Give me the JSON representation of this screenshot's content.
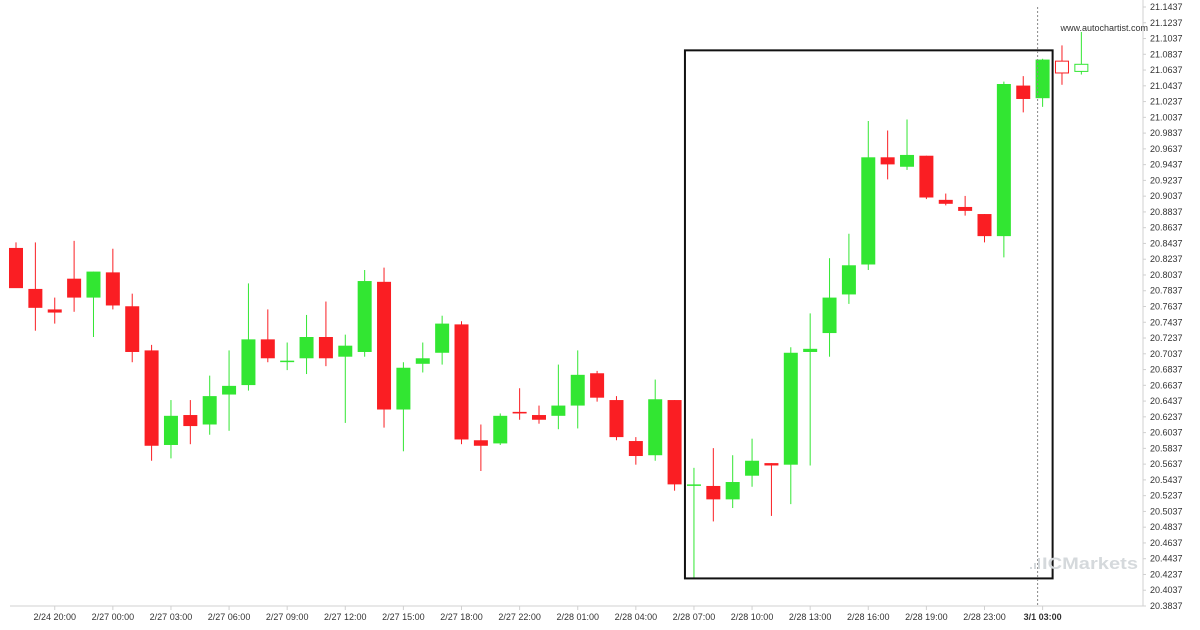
{
  "chart_data": {
    "type": "candlestick",
    "website": "www.autochartist.com",
    "watermark": "ICMarkets",
    "colors": {
      "up": "#32e632",
      "down": "#fa1e23",
      "box": "#111111",
      "axis": "#d0d0d0",
      "cursor": "#888888"
    },
    "ylim": [
      20.3837,
      21.1437
    ],
    "y_ticks": [
      "21.1437",
      "21.1237",
      "21.1037",
      "21.0837",
      "21.0637",
      "21.0437",
      "21.0237",
      "21.0037",
      "20.9837",
      "20.9637",
      "20.9437",
      "20.9237",
      "20.9037",
      "20.8837",
      "20.8637",
      "20.8437",
      "20.8237",
      "20.8037",
      "20.7837",
      "20.7637",
      "20.7437",
      "20.7237",
      "20.7037",
      "20.6837",
      "20.6637",
      "20.6437",
      "20.6237",
      "20.6037",
      "20.5837",
      "20.5637",
      "20.5437",
      "20.5237",
      "20.5037",
      "20.4837",
      "20.4637",
      "20.4437",
      "20.4237",
      "20.4037",
      "20.3837"
    ],
    "x_ticks": [
      {
        "label": "2/24 20:00",
        "index": 2
      },
      {
        "label": "2/27 00:00",
        "index": 5
      },
      {
        "label": "2/27 03:00",
        "index": 8
      },
      {
        "label": "2/27 06:00",
        "index": 11
      },
      {
        "label": "2/27 09:00",
        "index": 14
      },
      {
        "label": "2/27 12:00",
        "index": 17
      },
      {
        "label": "2/27 15:00",
        "index": 20
      },
      {
        "label": "2/27 18:00",
        "index": 23
      },
      {
        "label": "2/27 22:00",
        "index": 26
      },
      {
        "label": "2/28 01:00",
        "index": 29
      },
      {
        "label": "2/28 04:00",
        "index": 32
      },
      {
        "label": "2/28 07:00",
        "index": 35
      },
      {
        "label": "2/28 10:00",
        "index": 38
      },
      {
        "label": "2/28 13:00",
        "index": 41
      },
      {
        "label": "2/28 16:00",
        "index": 44
      },
      {
        "label": "2/28 19:00",
        "index": 47
      },
      {
        "label": "2/28 23:00",
        "index": 50
      },
      {
        "label": "3/1 03:00",
        "index": 53,
        "bold": true
      }
    ],
    "candles": [
      {
        "o": 20.838,
        "h": 20.845,
        "l": 20.788,
        "c": 20.787
      },
      {
        "o": 20.786,
        "h": 20.845,
        "l": 20.733,
        "c": 20.762
      },
      {
        "o": 20.76,
        "h": 20.775,
        "l": 20.742,
        "c": 20.756
      },
      {
        "o": 20.799,
        "h": 20.847,
        "l": 20.757,
        "c": 20.775
      },
      {
        "o": 20.775,
        "h": 20.808,
        "l": 20.725,
        "c": 20.808
      },
      {
        "o": 20.807,
        "h": 20.837,
        "l": 20.76,
        "c": 20.765
      },
      {
        "o": 20.764,
        "h": 20.78,
        "l": 20.693,
        "c": 20.706
      },
      {
        "o": 20.708,
        "h": 20.715,
        "l": 20.568,
        "c": 20.587
      },
      {
        "o": 20.588,
        "h": 20.645,
        "l": 20.571,
        "c": 20.625
      },
      {
        "o": 20.626,
        "h": 20.645,
        "l": 20.589,
        "c": 20.612
      },
      {
        "o": 20.614,
        "h": 20.676,
        "l": 20.601,
        "c": 20.65
      },
      {
        "o": 20.652,
        "h": 20.708,
        "l": 20.606,
        "c": 20.663
      },
      {
        "o": 20.664,
        "h": 20.793,
        "l": 20.657,
        "c": 20.722
      },
      {
        "o": 20.722,
        "h": 20.76,
        "l": 20.693,
        "c": 20.698
      },
      {
        "o": 20.695,
        "h": 20.718,
        "l": 20.683,
        "c": 20.695
      },
      {
        "o": 20.698,
        "h": 20.753,
        "l": 20.678,
        "c": 20.725
      },
      {
        "o": 20.725,
        "h": 20.77,
        "l": 20.688,
        "c": 20.698
      },
      {
        "o": 20.7,
        "h": 20.728,
        "l": 20.616,
        "c": 20.714
      },
      {
        "o": 20.706,
        "h": 20.81,
        "l": 20.7,
        "c": 20.796
      },
      {
        "o": 20.795,
        "h": 20.813,
        "l": 20.61,
        "c": 20.633
      },
      {
        "o": 20.633,
        "h": 20.693,
        "l": 20.58,
        "c": 20.686
      },
      {
        "o": 20.691,
        "h": 20.718,
        "l": 20.68,
        "c": 20.698
      },
      {
        "o": 20.705,
        "h": 20.752,
        "l": 20.69,
        "c": 20.742
      },
      {
        "o": 20.741,
        "h": 20.745,
        "l": 20.589,
        "c": 20.595
      },
      {
        "o": 20.594,
        "h": 20.614,
        "l": 20.555,
        "c": 20.587
      },
      {
        "o": 20.59,
        "h": 20.628,
        "l": 20.588,
        "c": 20.625
      },
      {
        "o": 20.63,
        "h": 20.66,
        "l": 20.62,
        "c": 20.628
      },
      {
        "o": 20.626,
        "h": 20.638,
        "l": 20.615,
        "c": 20.62
      },
      {
        "o": 20.625,
        "h": 20.69,
        "l": 20.608,
        "c": 20.638
      },
      {
        "o": 20.638,
        "h": 20.708,
        "l": 20.609,
        "c": 20.677
      },
      {
        "o": 20.679,
        "h": 20.682,
        "l": 20.643,
        "c": 20.648
      },
      {
        "o": 20.645,
        "h": 20.65,
        "l": 20.594,
        "c": 20.598
      },
      {
        "o": 20.593,
        "h": 20.598,
        "l": 20.563,
        "c": 20.574
      },
      {
        "o": 20.575,
        "h": 20.671,
        "l": 20.568,
        "c": 20.646
      },
      {
        "o": 20.645,
        "h": 20.645,
        "l": 20.53,
        "c": 20.538
      },
      {
        "o": 20.538,
        "h": 20.559,
        "l": 20.418,
        "c": 20.538
      },
      {
        "o": 20.536,
        "h": 20.584,
        "l": 20.491,
        "c": 20.519
      },
      {
        "o": 20.519,
        "h": 20.575,
        "l": 20.508,
        "c": 20.541
      },
      {
        "o": 20.549,
        "h": 20.596,
        "l": 20.535,
        "c": 20.568
      },
      {
        "o": 20.565,
        "h": 20.565,
        "l": 20.498,
        "c": 20.562
      },
      {
        "o": 20.563,
        "h": 20.712,
        "l": 20.513,
        "c": 20.705
      },
      {
        "o": 20.706,
        "h": 20.755,
        "l": 20.562,
        "c": 20.71
      },
      {
        "o": 20.73,
        "h": 20.825,
        "l": 20.7,
        "c": 20.775
      },
      {
        "o": 20.779,
        "h": 20.856,
        "l": 20.767,
        "c": 20.816
      },
      {
        "o": 20.817,
        "h": 20.999,
        "l": 20.81,
        "c": 20.953
      },
      {
        "o": 20.953,
        "h": 20.987,
        "l": 20.925,
        "c": 20.944
      },
      {
        "o": 20.941,
        "h": 21.001,
        "l": 20.937,
        "c": 20.956
      },
      {
        "o": 20.955,
        "h": 20.955,
        "l": 20.9,
        "c": 20.902
      },
      {
        "o": 20.899,
        "h": 20.907,
        "l": 20.892,
        "c": 20.894
      },
      {
        "o": 20.89,
        "h": 20.904,
        "l": 20.879,
        "c": 20.885
      },
      {
        "o": 20.881,
        "h": 20.881,
        "l": 20.845,
        "c": 20.853
      },
      {
        "o": 20.853,
        "h": 21.049,
        "l": 20.826,
        "c": 21.046
      },
      {
        "o": 21.044,
        "h": 21.056,
        "l": 21.01,
        "c": 21.027
      },
      {
        "o": 21.028,
        "h": 21.078,
        "l": 21.017,
        "c": 21.077
      },
      {
        "o": 21.075,
        "h": 21.095,
        "l": 21.045,
        "c": 21.06,
        "hollow": true
      },
      {
        "o": 21.062,
        "h": 21.112,
        "l": 21.058,
        "c": 21.071,
        "hollow": true
      }
    ],
    "pattern_box": {
      "start_index": 35,
      "end_index": 53,
      "top": 21.0887,
      "bottom": 20.4187
    },
    "cursor_index": 53
  }
}
